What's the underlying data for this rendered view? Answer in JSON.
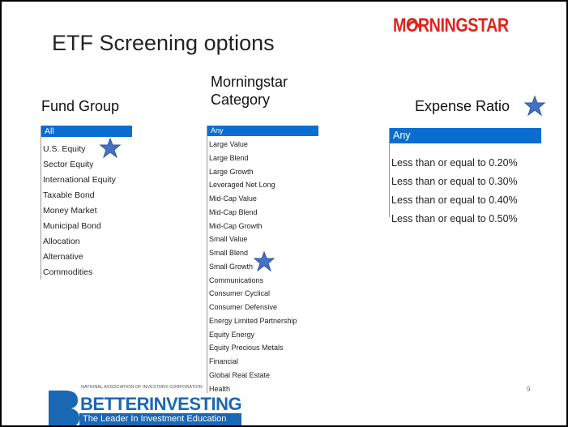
{
  "title": "ETF Screening options",
  "logo": "MORNINGSTAR",
  "fund_group": {
    "heading": "Fund Group",
    "items": [
      "All",
      "U.S. Equity",
      "Sector Equity",
      "International Equity",
      "Taxable Bond",
      "Money Market",
      "Municipal Bond",
      "Allocation",
      "Alternative",
      "Commodities"
    ]
  },
  "category": {
    "heading": "Morningstar Category",
    "items": [
      "Any",
      "Large Value",
      "Large Blend",
      "Large Growth",
      "Leveraged Net Long",
      "Mid-Cap Value",
      "Mid-Cap Blend",
      "Mid-Cap Growth",
      "Small Value",
      "Small Blend",
      "Small Growth",
      "Communications",
      "Consumer Cyclical",
      "Consumer Defensive",
      "Energy Limited Partnership",
      "Equity Energy",
      "Equity Precious Metals",
      "Financial",
      "Global Real Estate",
      "Health"
    ]
  },
  "expense_ratio": {
    "heading": "Expense Ratio",
    "items": [
      "Any",
      "Less than or equal to 0.20%",
      "Less than or equal to 0.30%",
      "Less than or equal to 0.40%",
      "Less than or equal to 0.50%"
    ]
  },
  "footer": {
    "org": "NATIONAL ASSOCIATION OF INVESTORS CORPORATION",
    "brand": "BETTERINVESTING",
    "tagline": "The Leader In Investment Education"
  },
  "page_number": "9"
}
